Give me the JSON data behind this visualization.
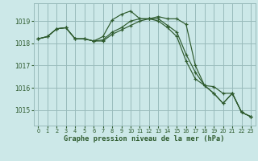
{
  "background_color": "#cce8e8",
  "grid_color": "#99bbbb",
  "line_color": "#2d5a2d",
  "title": "Graphe pression niveau de la mer (hPa)",
  "xlim": [
    -0.5,
    23.5
  ],
  "ylim": [
    1014.3,
    1019.8
  ],
  "yticks": [
    1015,
    1016,
    1017,
    1018,
    1019
  ],
  "xticks": [
    0,
    1,
    2,
    3,
    4,
    5,
    6,
    7,
    8,
    9,
    10,
    11,
    12,
    13,
    14,
    15,
    16,
    17,
    18,
    19,
    20,
    21,
    22,
    23
  ],
  "series": [
    [
      1018.2,
      1018.3,
      1018.65,
      1018.7,
      1018.2,
      1018.2,
      1018.1,
      1018.3,
      1019.05,
      1019.3,
      1019.45,
      1019.1,
      1019.1,
      1019.2,
      1019.1,
      1019.1,
      1018.85,
      1017.0,
      1016.1,
      1016.05,
      1015.75,
      1015.75,
      1014.9,
      1014.7
    ],
    [
      1018.2,
      1018.3,
      1018.65,
      1018.7,
      1018.2,
      1018.2,
      1018.1,
      1018.15,
      1018.5,
      1018.7,
      1019.0,
      1019.1,
      1019.1,
      1019.1,
      1018.8,
      1018.5,
      1017.5,
      1016.7,
      1016.1,
      1015.75,
      1015.3,
      1015.75,
      1014.9,
      1014.7
    ],
    [
      1018.2,
      1018.3,
      1018.65,
      1018.7,
      1018.2,
      1018.2,
      1018.1,
      1018.1,
      1018.4,
      1018.6,
      1018.8,
      1019.0,
      1019.1,
      1019.0,
      1018.7,
      1018.3,
      1017.2,
      1016.4,
      1016.1,
      1015.75,
      1015.3,
      1015.75,
      1014.9,
      1014.7
    ]
  ]
}
